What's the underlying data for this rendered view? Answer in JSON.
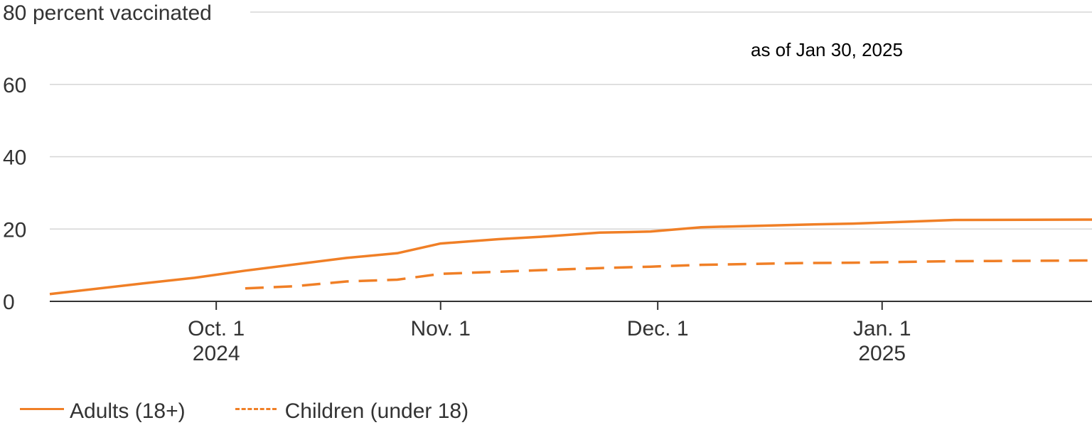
{
  "chart_data": {
    "type": "line",
    "y_unit_label": "percent vaccinated",
    "annotation": "as of Jan 30, 2025",
    "ylim": [
      0,
      80
    ],
    "yticks": [
      "0",
      "20",
      "40",
      "60",
      "80"
    ],
    "xlim": [
      "2024-09-08",
      "2025-01-30"
    ],
    "xticks": [
      {
        "date": "2024-10-01",
        "label": "Oct. 1",
        "year": "2024"
      },
      {
        "date": "2024-11-01",
        "label": "Nov. 1",
        "year": ""
      },
      {
        "date": "2024-12-01",
        "label": "Dec. 1",
        "year": ""
      },
      {
        "date": "2025-01-01",
        "label": "Jan. 1",
        "year": "2025"
      }
    ],
    "grid": true,
    "legend_position": "bottom-left",
    "series": [
      {
        "name": "Adults (18+)",
        "style": "solid",
        "color": "#f07f26",
        "points": [
          [
            "2024-09-08",
            2.0
          ],
          [
            "2024-09-21",
            5.0
          ],
          [
            "2024-09-28",
            6.5
          ],
          [
            "2024-10-05",
            8.5
          ],
          [
            "2024-10-19",
            12.0
          ],
          [
            "2024-10-26",
            13.3
          ],
          [
            "2024-11-01",
            16.0
          ],
          [
            "2024-11-09",
            17.2
          ],
          [
            "2024-11-16",
            18.0
          ],
          [
            "2024-11-23",
            19.0
          ],
          [
            "2024-11-30",
            19.3
          ],
          [
            "2024-12-07",
            20.5
          ],
          [
            "2024-12-21",
            21.2
          ],
          [
            "2024-12-28",
            21.5
          ],
          [
            "2025-01-04",
            22.0
          ],
          [
            "2025-01-11",
            22.5
          ],
          [
            "2025-01-30",
            22.6
          ]
        ]
      },
      {
        "name": "Children (under 18)",
        "style": "dashed",
        "color": "#f07f26",
        "points": [
          [
            "2024-10-05",
            3.6
          ],
          [
            "2024-10-12",
            4.2
          ],
          [
            "2024-10-19",
            5.5
          ],
          [
            "2024-10-26",
            6.0
          ],
          [
            "2024-11-01",
            7.6
          ],
          [
            "2024-11-09",
            8.2
          ],
          [
            "2024-11-16",
            8.7
          ],
          [
            "2024-11-23",
            9.2
          ],
          [
            "2024-11-30",
            9.6
          ],
          [
            "2024-12-07",
            10.1
          ],
          [
            "2024-12-21",
            10.6
          ],
          [
            "2024-12-28",
            10.7
          ],
          [
            "2025-01-04",
            10.9
          ],
          [
            "2025-01-11",
            11.1
          ],
          [
            "2025-01-30",
            11.3
          ]
        ]
      }
    ]
  }
}
